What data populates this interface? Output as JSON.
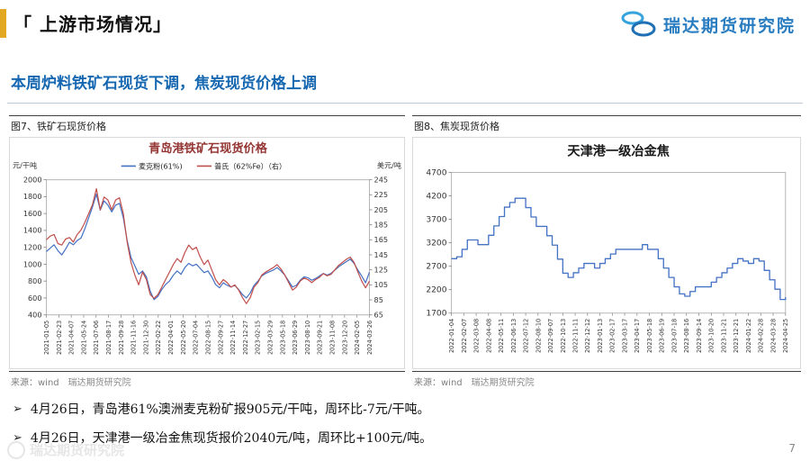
{
  "slide": {
    "title": "「 上游市场情况」",
    "subtitle": "本周炉料铁矿石现货下调，焦炭现货价格上调",
    "page_number": "7"
  },
  "logo": {
    "text": "瑞达期货研究院",
    "icon": "coins-icon"
  },
  "watermark": {
    "text": "瑞达期货研究院"
  },
  "figures": [
    {
      "caption": "图7、铁矿石现货价格",
      "source_label": "来源：wind",
      "source_org": "瑞达期货研究院"
    },
    {
      "caption": "图8、焦炭现货价格",
      "source_label": "来源：wind",
      "source_org": "瑞达期货研究院"
    }
  ],
  "bullets": [
    {
      "marker": "➢",
      "text": "4月26日，青岛港61%澳洲麦克粉矿报905元/干吨，周环比-7元/干吨。"
    },
    {
      "marker": "➢",
      "text": "4月26日，天津港一级冶金焦现货报价2040元/吨，周环比+100元/吨。"
    }
  ],
  "colors": {
    "accent_gold": "#E3A821",
    "subtitle_blue": "#1667B1",
    "logo_blue": "#2A7DC0",
    "iron_ore_line": "#4472C4",
    "platts_line": "#C0504D",
    "coke_line": "#4472C4",
    "chart1_title": "#943634"
  },
  "chart_data": [
    {
      "type": "line",
      "title": "青岛港铁矿石现货价格",
      "title_color": "#943634",
      "left_axis_label": "元/干吨",
      "right_axis_label": "美元/吨",
      "left_ylim": [
        400,
        2000
      ],
      "left_yticks": [
        2000,
        1800,
        1600,
        1400,
        1200,
        1000,
        800,
        600,
        400
      ],
      "right_ylim": [
        65,
        245
      ],
      "right_yticks": [
        245,
        225,
        205,
        185,
        165,
        145,
        125,
        105,
        85,
        65
      ],
      "legend_position": "top",
      "grid": false,
      "x_tick_labels": [
        "2021-01-05",
        "2021-02-23",
        "2021-04-07",
        "2021-05-24",
        "2021-07-06",
        "2021-08-17",
        "2021-09-28",
        "2021-11-16",
        "2021-12-30",
        "2022-02-22",
        "2022-04-01",
        "2022-05-20",
        "2022-07-04",
        "2022-08-15",
        "2022-09-27",
        "2022-11-14",
        "2022-12-27",
        "2023-02-15",
        "2023-03-29",
        "2023-05-18",
        "2023-06-29",
        "2023-08-10",
        "2023-09-21",
        "2023-11-08",
        "2023-12-20",
        "2024-02-05",
        "2024-03-26"
      ],
      "series": [
        {
          "name": "麦克粉(61%)",
          "axis": "left",
          "color": "#4472C4",
          "values": [
            1150,
            1190,
            1230,
            1160,
            1110,
            1180,
            1260,
            1230,
            1280,
            1310,
            1420,
            1550,
            1680,
            1830,
            1640,
            1750,
            1700,
            1620,
            1700,
            1720,
            1550,
            1280,
            1080,
            980,
            880,
            920,
            850,
            680,
            580,
            620,
            700,
            760,
            800,
            870,
            920,
            880,
            960,
            1010,
            980,
            1000,
            950,
            900,
            920,
            850,
            760,
            720,
            780,
            750,
            730,
            750,
            700,
            640,
            600,
            660,
            750,
            800,
            860,
            890,
            910,
            930,
            960,
            920,
            870,
            800,
            730,
            750,
            810,
            850,
            840,
            810,
            830,
            860,
            890,
            870,
            890,
            930,
            970,
            1000,
            1030,
            1060,
            1010,
            930,
            860,
            780,
            905
          ]
        },
        {
          "name": "普氏（62%Fe）（右）",
          "axis": "right",
          "color": "#C0504D",
          "values": [
            165,
            170,
            172,
            160,
            158,
            166,
            168,
            162,
            172,
            178,
            188,
            200,
            212,
            233,
            205,
            222,
            218,
            205,
            218,
            221,
            200,
            162,
            135,
            118,
            105,
            122,
            112,
            92,
            87,
            92,
            102,
            112,
            122,
            132,
            140,
            135,
            148,
            158,
            152,
            155,
            142,
            132,
            138,
            125,
            112,
            105,
            112,
            108,
            102,
            105,
            98,
            88,
            80,
            88,
            102,
            108,
            118,
            122,
            125,
            128,
            132,
            126,
            118,
            108,
            98,
            102,
            110,
            114,
            112,
            108,
            112,
            115,
            120,
            117,
            119,
            125,
            131,
            135,
            139,
            142,
            135,
            122,
            110,
            101,
            110
          ]
        }
      ]
    },
    {
      "type": "line",
      "title": "天津港一级冶金焦",
      "title_color": "#1a1a1a",
      "ylim": [
        1700,
        4700
      ],
      "yticks": [
        4700,
        4200,
        3700,
        3200,
        2700,
        2200,
        1700
      ],
      "legend_position": "none",
      "grid": false,
      "x_tick_labels": [
        "2022-01-04",
        "2022-02-07",
        "2022-03-08",
        "2022-04-08",
        "2022-05-11",
        "2022-06-13",
        "2022-07-12",
        "2022-08-10",
        "2022-09-07",
        "2022-10-13",
        "2022-11-11",
        "2022-12-12",
        "2023-01-13",
        "2023-02-17",
        "2023-03-17",
        "2023-04-17",
        "2023-05-18",
        "2023-06-19",
        "2023-07-18",
        "2023-08-16",
        "2023-09-14",
        "2023-10-20",
        "2023-11-21",
        "2023-12-21",
        "2024-01-22",
        "2024-02-28",
        "2024-03-28",
        "2024-04-25"
      ],
      "series": [
        {
          "name": "天津港一级冶金焦",
          "axis": "left",
          "color": "#4472C4",
          "step": true,
          "values": [
            2860,
            2900,
            3060,
            3260,
            3260,
            3160,
            3160,
            3360,
            3560,
            3760,
            3960,
            4060,
            4150,
            4150,
            3950,
            3750,
            3550,
            3550,
            3350,
            3150,
            2850,
            2550,
            2460,
            2560,
            2660,
            2760,
            2760,
            2660,
            2760,
            2860,
            2960,
            3060,
            3060,
            3060,
            3060,
            3060,
            3160,
            3060,
            3060,
            2860,
            2660,
            2460,
            2260,
            2110,
            2060,
            2160,
            2260,
            2260,
            2260,
            2360,
            2460,
            2560,
            2660,
            2760,
            2860,
            2810,
            2760,
            2860,
            2810,
            2610,
            2410,
            2210,
            1990,
            2040
          ]
        }
      ]
    }
  ]
}
